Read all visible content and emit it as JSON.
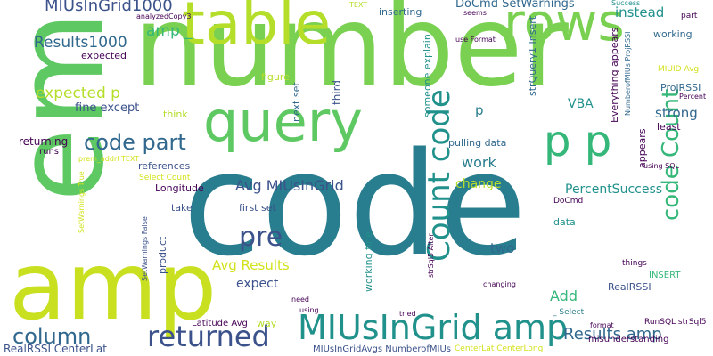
{
  "palette": {
    "background": "#ffffff",
    "dark_purple": "#440154",
    "indigo": "#3b528b",
    "blue": "#31688e",
    "teal": "#21918c",
    "dark_teal": "#287d8e",
    "sea_green": "#35b779",
    "green": "#5ec962",
    "light_green": "#7ad151",
    "yellow_green": "#b5de2b",
    "yellow": "#d2e21b"
  },
  "words": [
    {
      "text": "number",
      "color": "#7ad151"
    },
    {
      "text": "code",
      "color": "#287d8e"
    },
    {
      "text": "em",
      "color": "#5ec962"
    },
    {
      "text": "amp",
      "color": "#c8e020"
    },
    {
      "text": "query",
      "color": "#5ec962"
    },
    {
      "text": "table",
      "color": "#b5de2b"
    },
    {
      "text": "rows",
      "color": "#7ad151"
    },
    {
      "text": "p p",
      "color": "#35b779"
    },
    {
      "text": "Count code",
      "color": "#21918c"
    },
    {
      "text": "code Count",
      "color": "#35b779"
    },
    {
      "text": "MIUsInGrid amp",
      "color": "#21918c"
    },
    {
      "text": "returned",
      "color": "#3b528b"
    },
    {
      "text": "column",
      "color": "#31688e"
    },
    {
      "text": "pre",
      "color": "#3b528b"
    },
    {
      "text": "code part",
      "color": "#31688e"
    },
    {
      "text": "Results amp",
      "color": "#31688e"
    },
    {
      "text": "MIUsInGrid1000",
      "color": "#3b528b"
    },
    {
      "text": "DoCmd SetWarnings",
      "color": "#31688e"
    },
    {
      "text": "Results1000",
      "color": "#31688e"
    },
    {
      "text": "expected p",
      "color": "#b5de2b"
    },
    {
      "text": "amp _",
      "color": "#35b779"
    },
    {
      "text": "instead",
      "color": "#21918c"
    },
    {
      "text": "Avg MIUsInGrid",
      "color": "#3b528b"
    },
    {
      "text": "Avg Results",
      "color": "#d2e21b"
    },
    {
      "text": "expect",
      "color": "#3b528b"
    },
    {
      "text": "work",
      "color": "#287d8e"
    },
    {
      "text": "change",
      "color": "#b5de2b"
    },
    {
      "text": "two",
      "color": "#31688e"
    },
    {
      "text": "Add",
      "color": "#35b779"
    },
    {
      "text": "strong",
      "color": "#31688e"
    },
    {
      "text": "VBA",
      "color": "#21918c"
    },
    {
      "text": "p",
      "color": "#287d8e"
    },
    {
      "text": "PercentSuccess",
      "color": "#21918c"
    },
    {
      "text": "fine except",
      "color": "#3b528b"
    },
    {
      "text": "expected",
      "color": "#440154"
    },
    {
      "text": "returning",
      "color": "#440154"
    },
    {
      "text": "Longitude",
      "color": "#440154"
    },
    {
      "text": "references",
      "color": "#3b528b"
    },
    {
      "text": "working",
      "color": "#31688e"
    },
    {
      "text": "least",
      "color": "#440154"
    },
    {
      "text": "ProjRSSI",
      "color": "#31688e"
    },
    {
      "text": "RealRSSI",
      "color": "#3b528b"
    },
    {
      "text": "misunderstanding",
      "color": "#440154"
    },
    {
      "text": "RealRSSI CenterLat",
      "color": "#3b528b"
    },
    {
      "text": "MIUsInGridAvgs NumberofMIUs",
      "color": "#3b528b"
    },
    {
      "text": "CenterLat CenterLong",
      "color": "#d2e21b"
    },
    {
      "text": "inserting",
      "color": "#31688e"
    },
    {
      "text": "figure",
      "color": "#b5de2b"
    },
    {
      "text": "think",
      "color": "#b5de2b"
    },
    {
      "text": "pulling data",
      "color": "#31688e"
    },
    {
      "text": "take",
      "color": "#3b528b"
    },
    {
      "text": "first set",
      "color": "#3b528b"
    },
    {
      "text": "way",
      "color": "#b5de2b"
    },
    {
      "text": "Latitude Avg",
      "color": "#440154"
    },
    {
      "text": "data",
      "color": "#21918c"
    },
    {
      "text": "things",
      "color": "#440154"
    },
    {
      "text": "INSERT",
      "color": "#35b779"
    },
    {
      "text": "DoCmd",
      "color": "#440154"
    },
    {
      "text": "RunSQL strSql5",
      "color": "#440154"
    },
    {
      "text": "format",
      "color": "#440154"
    },
    {
      "text": "_ Select",
      "color": "#287d8e"
    },
    {
      "text": "tried",
      "color": "#440154"
    },
    {
      "text": "using",
      "color": "#440154"
    },
    {
      "text": "need",
      "color": "#440154"
    },
    {
      "text": "changing",
      "color": "#440154"
    },
    {
      "text": "runs",
      "color": "#440154"
    },
    {
      "text": "analyzedCopy3",
      "color": "#440154"
    },
    {
      "text": "TEXT",
      "color": "#b5de2b"
    },
    {
      "text": "seems",
      "color": "#440154"
    },
    {
      "text": "use Format",
      "color": "#440154"
    },
    {
      "text": "Success",
      "color": "#21918c"
    },
    {
      "text": "Percent",
      "color": "#440154"
    },
    {
      "text": "MIUID Avg",
      "color": "#d2e21b"
    },
    {
      "text": "using SQL",
      "color": "#440154"
    },
    {
      "text": "part",
      "color": "#440154"
    },
    {
      "text": "Select Count",
      "color": "#d2e21b"
    },
    {
      "text": "prem_addrl TEXT",
      "color": "#d2e21b"
    },
    {
      "text": "next set",
      "color": "#31688e"
    },
    {
      "text": "third",
      "color": "#3b528b"
    },
    {
      "text": "someone explain",
      "color": "#21918c"
    },
    {
      "text": "strQuery1 Insert",
      "color": "#31688e"
    },
    {
      "text": "Everything appears",
      "color": "#440154"
    },
    {
      "text": "NumberofMIUs ProjRSSI",
      "color": "#31688e"
    },
    {
      "text": "appears",
      "color": "#440154"
    },
    {
      "text": "working fine",
      "color": "#21918c"
    },
    {
      "text": "product",
      "color": "#3b528b"
    },
    {
      "text": "SetWarnings False",
      "color": "#3b528b"
    },
    {
      "text": "SetWarnings True",
      "color": "#d2e21b"
    },
    {
      "text": "strSql5 Alter",
      "color": "#440154"
    }
  ]
}
